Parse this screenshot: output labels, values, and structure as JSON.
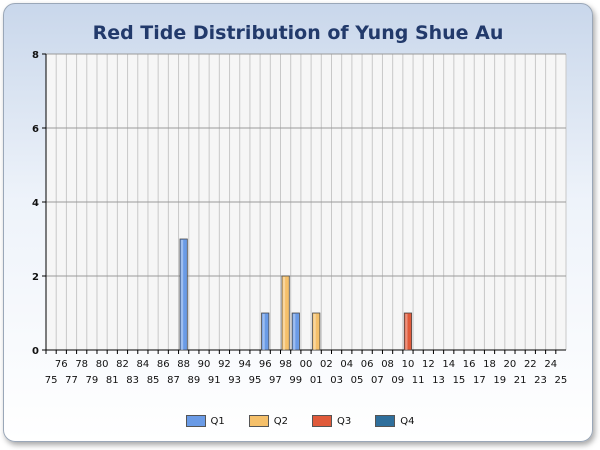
{
  "chart_data": {
    "type": "bar",
    "title": "Red Tide Distribution of Yung Shue Au",
    "xlabel": "",
    "ylabel": "",
    "ylim": [
      0,
      8
    ],
    "yticks": [
      0,
      2,
      4,
      6,
      8
    ],
    "categories": [
      "75",
      "76",
      "77",
      "78",
      "79",
      "80",
      "81",
      "82",
      "83",
      "84",
      "85",
      "86",
      "87",
      "88",
      "89",
      "90",
      "91",
      "92",
      "93",
      "94",
      "95",
      "96",
      "97",
      "98",
      "99",
      "00",
      "01",
      "02",
      "03",
      "04",
      "05",
      "06",
      "07",
      "08",
      "09",
      "10",
      "11",
      "12",
      "13",
      "14",
      "15",
      "16",
      "17",
      "18",
      "19",
      "20",
      "21",
      "22",
      "23",
      "24",
      "25"
    ],
    "series": [
      {
        "name": "Q1",
        "color": "#6a9be6",
        "values": [
          0,
          0,
          0,
          0,
          0,
          0,
          0,
          0,
          0,
          0,
          0,
          0,
          0,
          3,
          0,
          0,
          0,
          0,
          0,
          0,
          0,
          1,
          0,
          0,
          1,
          0,
          0,
          0,
          0,
          0,
          0,
          0,
          0,
          0,
          0,
          0,
          0,
          0,
          0,
          0,
          0,
          0,
          0,
          0,
          0,
          0,
          0,
          0,
          0,
          0,
          0
        ]
      },
      {
        "name": "Q2",
        "color": "#f5c06a",
        "values": [
          0,
          0,
          0,
          0,
          0,
          0,
          0,
          0,
          0,
          0,
          0,
          0,
          0,
          0,
          0,
          0,
          0,
          0,
          0,
          0,
          0,
          0,
          0,
          2,
          0,
          0,
          1,
          0,
          0,
          0,
          0,
          0,
          0,
          0,
          0,
          0,
          0,
          0,
          0,
          0,
          0,
          0,
          0,
          0,
          0,
          0,
          0,
          0,
          0,
          0,
          0
        ]
      },
      {
        "name": "Q3",
        "color": "#e05a3a",
        "values": [
          0,
          0,
          0,
          0,
          0,
          0,
          0,
          0,
          0,
          0,
          0,
          0,
          0,
          0,
          0,
          0,
          0,
          0,
          0,
          0,
          0,
          0,
          0,
          0,
          0,
          0,
          0,
          0,
          0,
          0,
          0,
          0,
          0,
          0,
          0,
          1,
          0,
          0,
          0,
          0,
          0,
          0,
          0,
          0,
          0,
          0,
          0,
          0,
          0,
          0,
          0
        ]
      },
      {
        "name": "Q4",
        "color": "#2f6f9c",
        "values": [
          0,
          0,
          0,
          0,
          0,
          0,
          0,
          0,
          0,
          0,
          0,
          0,
          0,
          0,
          0,
          0,
          0,
          0,
          0,
          0,
          0,
          0,
          0,
          0,
          0,
          0,
          0,
          0,
          0,
          0,
          0,
          0,
          0,
          0,
          0,
          0,
          0,
          0,
          0,
          0,
          0,
          0,
          0,
          0,
          0,
          0,
          0,
          0,
          0,
          0,
          0
        ]
      }
    ],
    "grid": true,
    "legend": "bottom"
  }
}
